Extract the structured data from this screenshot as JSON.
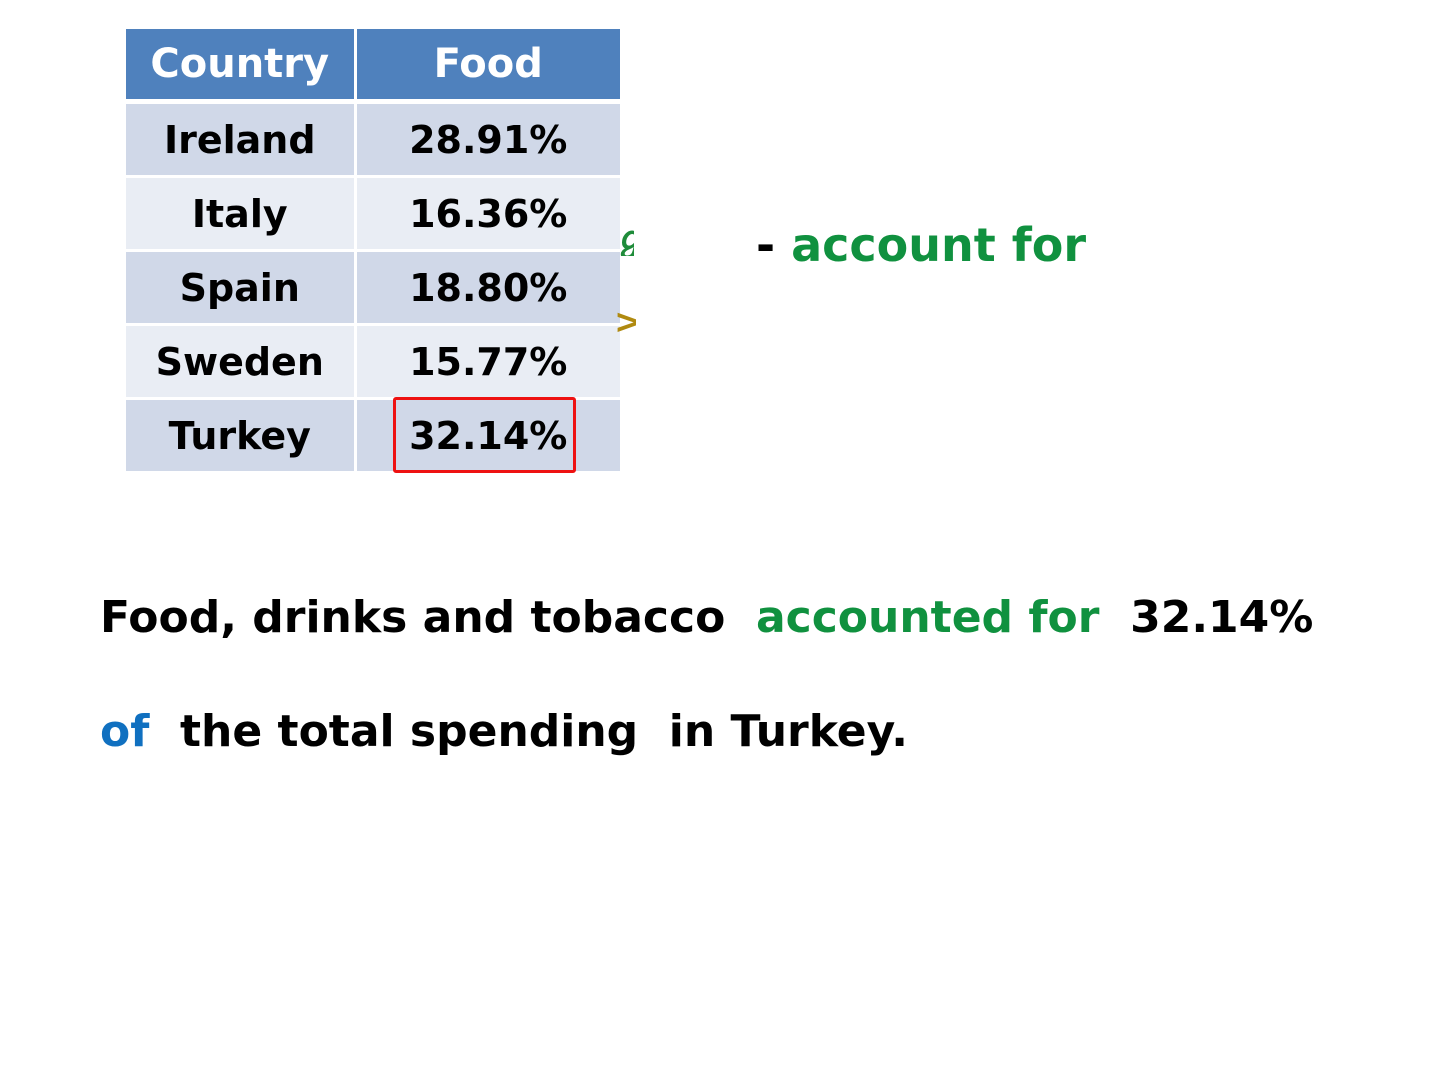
{
  "table": {
    "headers": [
      "Country",
      "Food"
    ],
    "rows": [
      {
        "country": "Ireland",
        "food": "28.91%"
      },
      {
        "country": "Italy",
        "food": "16.36%"
      },
      {
        "country": "Spain",
        "food": "18.80%"
      },
      {
        "country": "Sweden",
        "food": "15.77%"
      },
      {
        "country": "Turkey",
        "food": "32.14%"
      }
    ],
    "highlighted_cell": "32.14%"
  },
  "phrase": {
    "dash": "- ",
    "text": "account for"
  },
  "sentence": {
    "part1": "Food, drinks and tobacco  ",
    "part2": "accounted for",
    "part3": "  32.14%",
    "part4": "of",
    "part5": "  the total spending  in Turkey."
  },
  "colors": {
    "header_bg": "#4f81bd",
    "row_odd": "#d0d8e8",
    "row_even": "#e9edf4",
    "highlight": "#ee1111",
    "green": "#10913f",
    "blue": "#1070c0"
  }
}
